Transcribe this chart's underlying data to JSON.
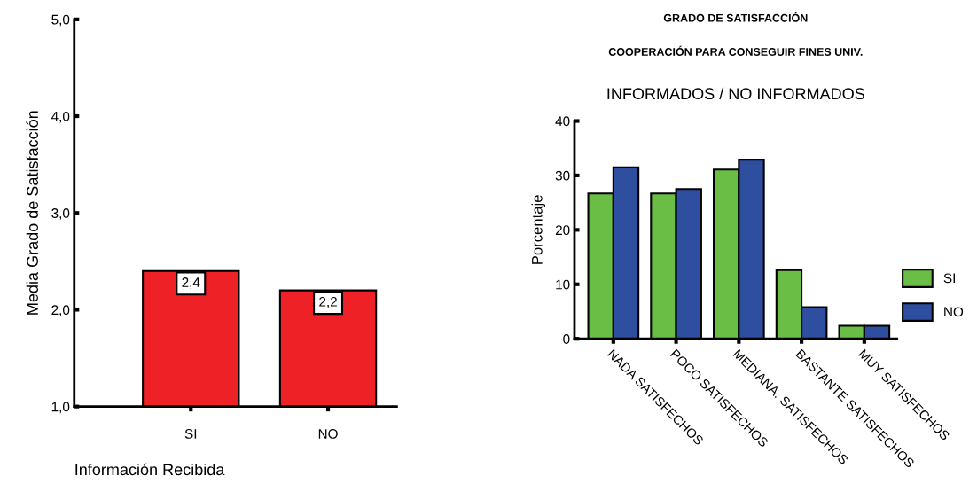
{
  "chart_data": [
    {
      "type": "bar",
      "categories": [
        "SI",
        "NO"
      ],
      "xlabel": "Información Recibida",
      "ylabel": "Media Grado de Satisfacción",
      "series": [
        {
          "color": "#ee2226",
          "values": [
            2.4,
            2.2
          ],
          "value_labels": [
            "2,4",
            "2,2"
          ]
        }
      ],
      "ylim": [
        1,
        5
      ],
      "yticks": [
        {
          "value": 1,
          "label": "1,0"
        },
        {
          "value": 2,
          "label": "2,0"
        },
        {
          "value": 3,
          "label": "3,0"
        },
        {
          "value": 4,
          "label": "4,0"
        },
        {
          "value": 5,
          "label": "5,0"
        }
      ],
      "grid": false,
      "legend": false
    },
    {
      "type": "bar",
      "title": "GRADO DE SATISFACCIÓN",
      "subtitle": "COOPERACIÓN PARA CONSEGUIR FINES UNIV.",
      "annotations": [
        "INFORMADOS / NO INFORMADOS"
      ],
      "ylabel": "Porcentaje",
      "categories": [
        "NADA SATISFECHOS",
        "POCO SATISFECHOS",
        "MEDIANA. SATISFECHOS",
        "BASTANTE SATISFECHOS",
        "MUY SATISFECHOS"
      ],
      "series": [
        {
          "name": "SI",
          "color": "#6abd45",
          "values": [
            26.7,
            26.7,
            31.1,
            12.6,
            2.4
          ]
        },
        {
          "name": "NO",
          "color": "#2e4e9f",
          "values": [
            31.5,
            27.5,
            32.9,
            5.8,
            2.4
          ]
        }
      ],
      "ylim": [
        0,
        40
      ],
      "yticks": [
        0,
        10,
        20,
        30,
        40
      ],
      "grid": false,
      "legend": "right"
    }
  ]
}
